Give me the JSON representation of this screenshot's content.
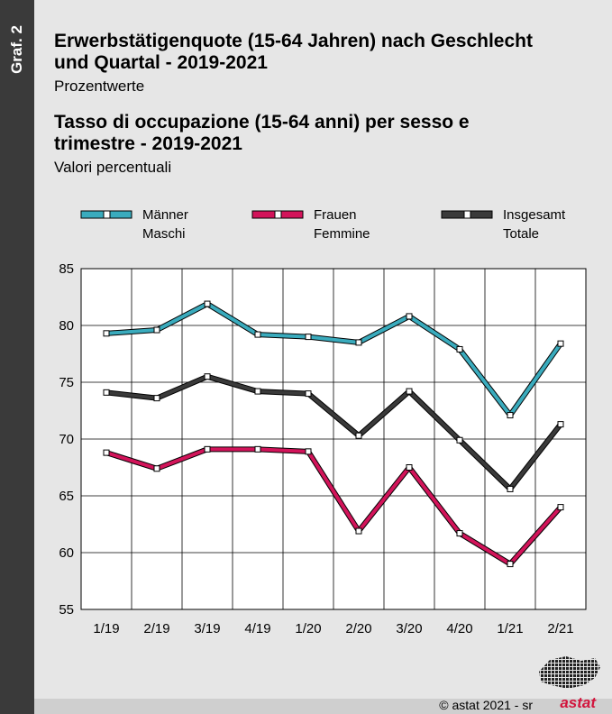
{
  "sidebar_label": "Graf. 2",
  "title_de_line1": "Erwerbstätigenquote (15-64 Jahren) nach Geschlecht",
  "title_de_line2": "und Quartal - 2019-2021",
  "subtitle_de": "Prozentwerte",
  "title_it_line1": "Tasso di occupazione (15-64 anni) per sesso e",
  "title_it_line2": "trimestre - 2019-2021",
  "subtitle_it": "Valori percentuali",
  "footer": {
    "copyright": "© astat 2021 - sr",
    "brand": "astat"
  },
  "chart_data": {
    "type": "line",
    "categories": [
      "1/19",
      "2/19",
      "3/19",
      "4/19",
      "1/20",
      "2/20",
      "3/20",
      "4/20",
      "1/21",
      "2/21"
    ],
    "ylim": [
      55,
      85
    ],
    "yticks": [
      55,
      60,
      65,
      70,
      75,
      80,
      85
    ],
    "grid": true,
    "legend_position": "top",
    "series": [
      {
        "name": "Männer",
        "name2": "Maschi",
        "color": "#3aabbd",
        "values": [
          79.3,
          79.6,
          81.9,
          79.2,
          79.0,
          78.5,
          80.8,
          77.9,
          72.1,
          78.4
        ]
      },
      {
        "name": "Frauen",
        "name2": "Femmine",
        "color": "#d2145a",
        "values": [
          68.8,
          67.4,
          69.1,
          69.1,
          68.9,
          61.9,
          67.5,
          61.7,
          59.0,
          64.0
        ]
      },
      {
        "name": "Insgesamt",
        "name2": "Totale",
        "color": "#3a3a3a",
        "values": [
          74.1,
          73.6,
          75.5,
          74.2,
          74.0,
          70.3,
          74.2,
          69.9,
          65.6,
          71.3
        ]
      }
    ]
  }
}
